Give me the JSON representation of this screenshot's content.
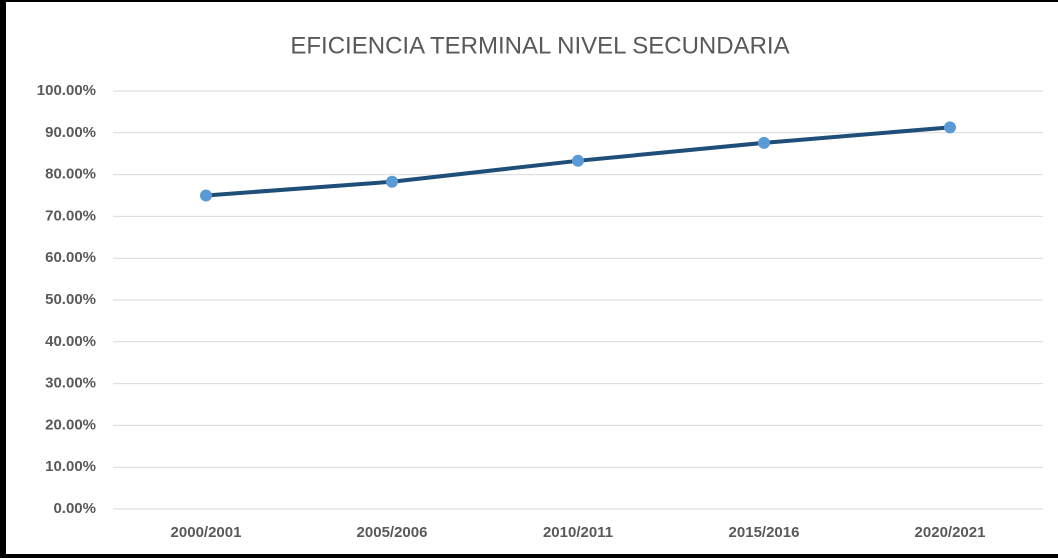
{
  "chart_data": {
    "type": "line",
    "title": "EFICIENCIA TERMINAL NIVEL SECUNDARIA",
    "categories": [
      "2000/2001",
      "2005/2006",
      "2010/2011",
      "2015/2016",
      "2020/2021"
    ],
    "values": [
      75,
      78.3,
      83.3,
      87.6,
      91.3
    ],
    "color": "#1f4e79",
    "marker_color": "#5b9bd5",
    "ylim": [
      0,
      100
    ],
    "yticks": [
      {
        "value": 0,
        "label": "0.00%"
      },
      {
        "value": 10,
        "label": "10.00%"
      },
      {
        "value": 20,
        "label": "20.00%"
      },
      {
        "value": 30,
        "label": "30.00%"
      },
      {
        "value": 40,
        "label": "40.00%"
      },
      {
        "value": 50,
        "label": "50.00%"
      },
      {
        "value": 60,
        "label": "60.00%"
      },
      {
        "value": 70,
        "label": "70.00%"
      },
      {
        "value": 80,
        "label": "80.00%"
      },
      {
        "value": 90,
        "label": "90.00%"
      },
      {
        "value": 100,
        "label": "100.00%"
      }
    ],
    "grid": true
  }
}
